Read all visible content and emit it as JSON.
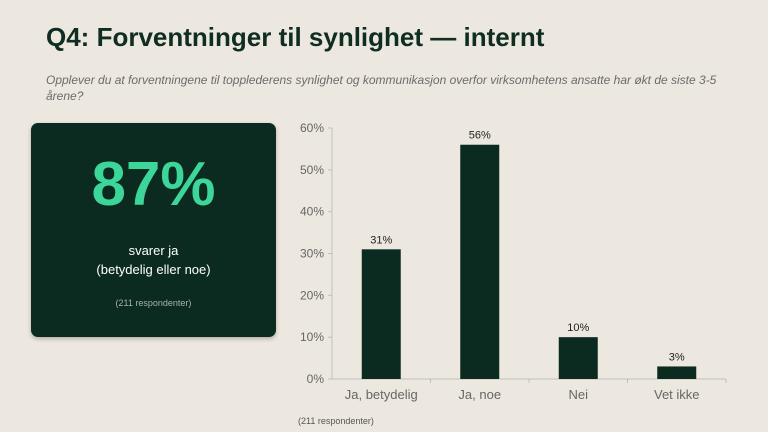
{
  "header": {
    "title": "Q4: Forventninger til synlighet — internt",
    "subtitle": "Opplever du at forventningene til topplederens synlighet og kommunikasjon overfor virksomhetens ansatte har økt de siste 3-5 årene?"
  },
  "kpi": {
    "value": "87%",
    "label_line1": "svarer ja",
    "label_line2": "(betydelig eller noe)",
    "note": "(211 respondenter)"
  },
  "footnote": "(211 respondenter)",
  "colors": {
    "background": "#ece8df",
    "bar": "#0c2b20",
    "accent": "#3dd69a",
    "axis_text": "#666666"
  },
  "chart_data": {
    "type": "bar",
    "categories": [
      "Ja, betydelig",
      "Ja, noe",
      "Nei",
      "Vet ikke"
    ],
    "values": [
      31,
      56,
      10,
      3
    ],
    "data_labels": [
      "31%",
      "56%",
      "10%",
      "3%"
    ],
    "ylim": [
      0,
      60
    ],
    "yticks": [
      0,
      10,
      20,
      30,
      40,
      50,
      60
    ],
    "ytick_labels": [
      "0%",
      "10%",
      "20%",
      "30%",
      "40%",
      "50%",
      "60%"
    ],
    "grid": false,
    "title": "",
    "xlabel": "",
    "ylabel": ""
  }
}
